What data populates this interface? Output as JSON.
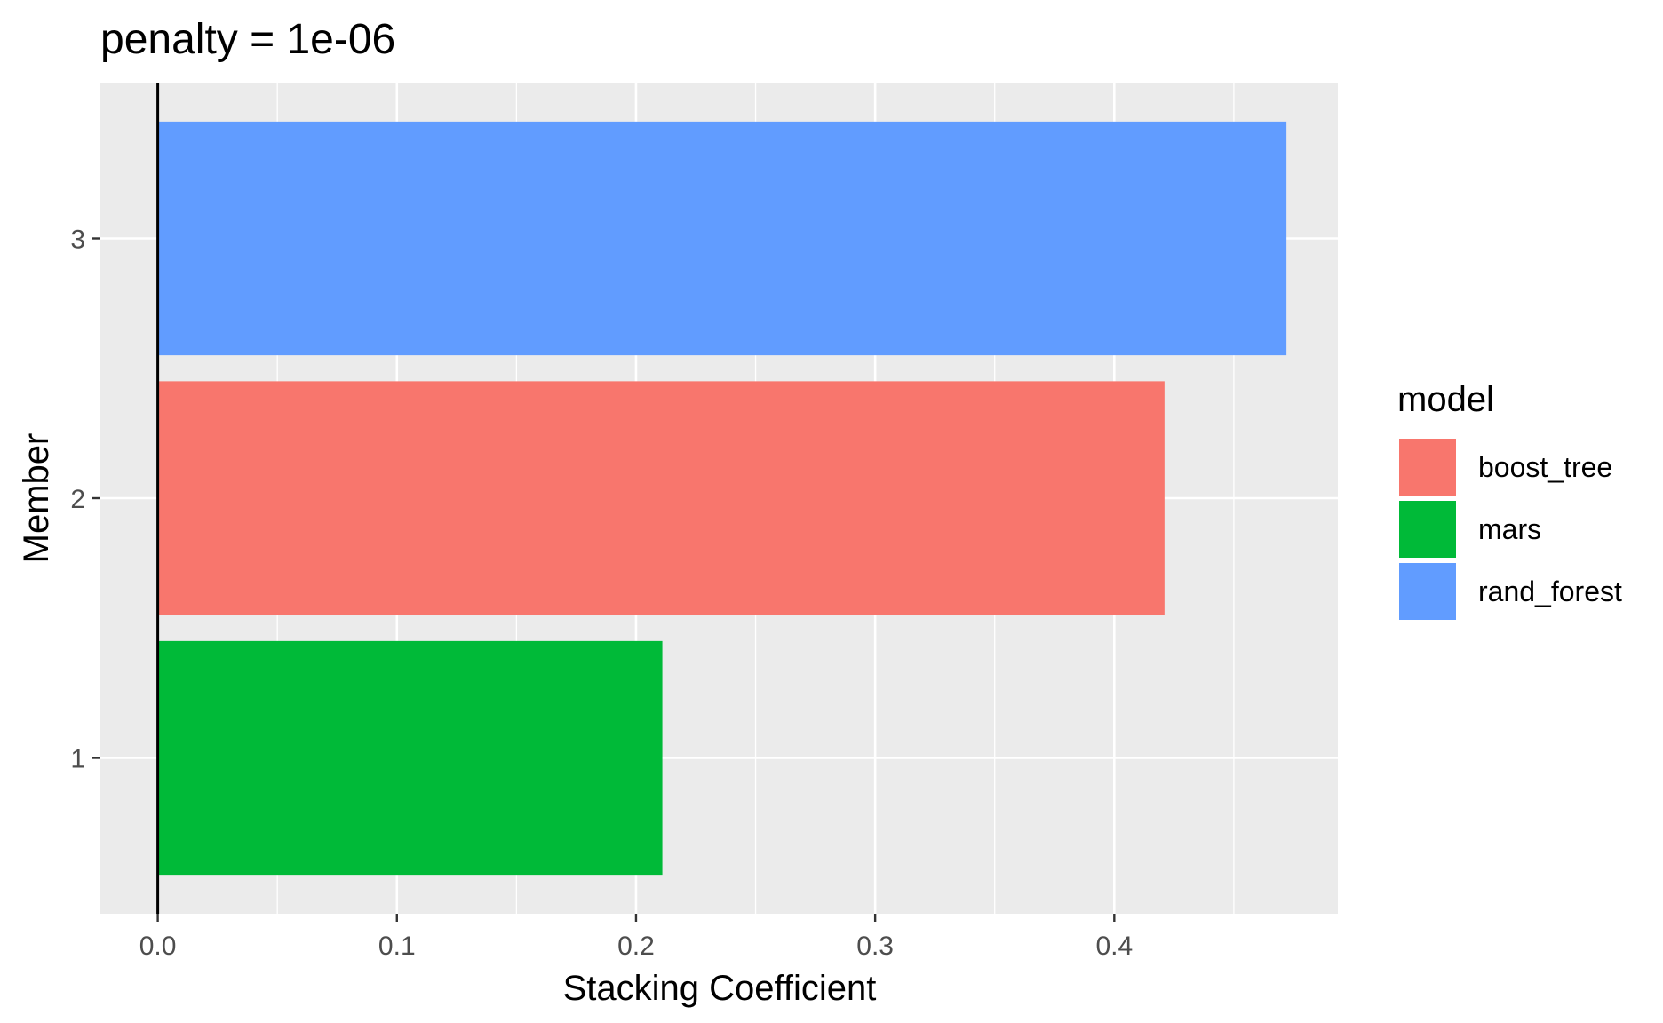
{
  "chart_data": {
    "type": "bar",
    "orientation": "horizontal",
    "title": "penalty = 1e-06",
    "xlabel": "Stacking Coefficient",
    "ylabel": "Member",
    "xlim": [
      -0.024,
      0.4935
    ],
    "x_ticks": [
      "0.0",
      "0.1",
      "0.2",
      "0.3",
      "0.4"
    ],
    "x_tick_values": [
      0.0,
      0.1,
      0.2,
      0.3,
      0.4
    ],
    "categories": [
      "1",
      "2",
      "3"
    ],
    "bars": [
      {
        "member": "1",
        "model": "mars",
        "value": 0.211
      },
      {
        "member": "2",
        "model": "boost_tree",
        "value": 0.421
      },
      {
        "member": "3",
        "model": "rand_forest",
        "value": 0.472
      }
    ],
    "legend": {
      "title": "model",
      "position": "right",
      "entries": [
        {
          "label": "boost_tree",
          "color": "#F8766D"
        },
        {
          "label": "mars",
          "color": "#00BA38"
        },
        {
          "label": "rand_forest",
          "color": "#619CFF"
        }
      ]
    },
    "zero_line": true,
    "grid": true,
    "panel_background": "#EBEBEB"
  }
}
